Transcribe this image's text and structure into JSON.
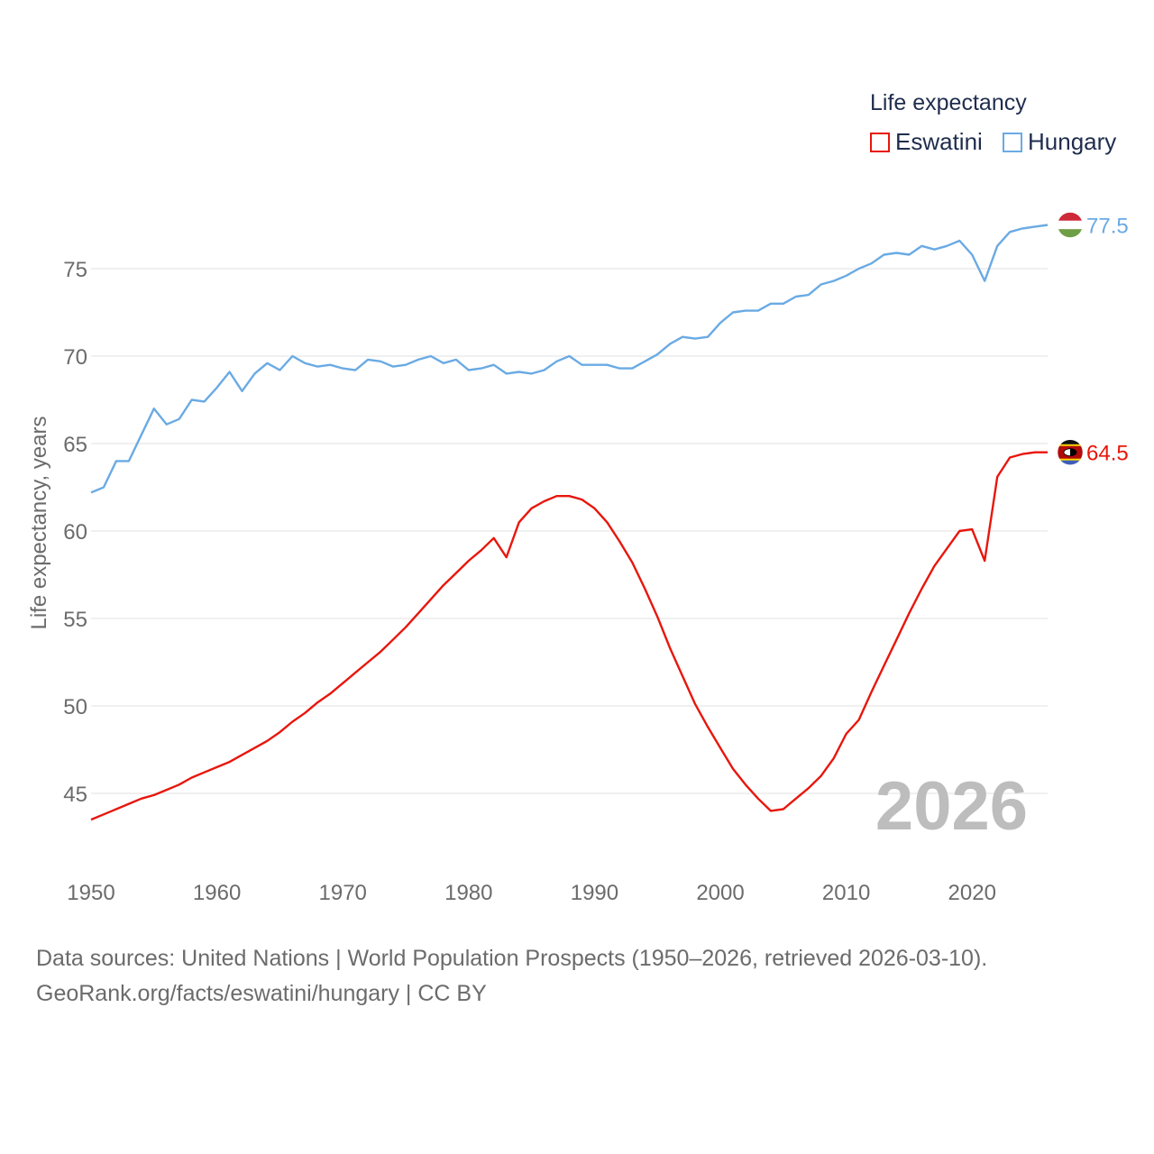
{
  "chart_data": {
    "type": "line",
    "title": "",
    "legend_title": "Life expectancy",
    "xlabel": "",
    "ylabel": "Life expectancy, years",
    "xlim": [
      1950,
      2026
    ],
    "ylim": [
      42,
      80
    ],
    "x_ticks": [
      "1950",
      "1960",
      "1970",
      "1980",
      "1990",
      "2000",
      "2010",
      "2020"
    ],
    "y_ticks": [
      "45",
      "50",
      "55",
      "60",
      "65",
      "70",
      "75"
    ],
    "watermark_year": "2026",
    "legend_position": "top-right",
    "x": [
      1950,
      1951,
      1952,
      1953,
      1954,
      1955,
      1956,
      1957,
      1958,
      1959,
      1960,
      1961,
      1962,
      1963,
      1964,
      1965,
      1966,
      1967,
      1968,
      1969,
      1970,
      1971,
      1972,
      1973,
      1974,
      1975,
      1976,
      1977,
      1978,
      1979,
      1980,
      1981,
      1982,
      1983,
      1984,
      1985,
      1986,
      1987,
      1988,
      1989,
      1990,
      1991,
      1992,
      1993,
      1994,
      1995,
      1996,
      1997,
      1998,
      1999,
      2000,
      2001,
      2002,
      2003,
      2004,
      2005,
      2006,
      2007,
      2008,
      2009,
      2010,
      2011,
      2012,
      2013,
      2014,
      2015,
      2016,
      2017,
      2018,
      2019,
      2020,
      2021,
      2022,
      2023,
      2024,
      2025,
      2026
    ],
    "series": [
      {
        "name": "Eswatini",
        "color": "#e8160c",
        "end_label": "64.5",
        "flag": "eswatini-flag-icon",
        "values": [
          43.5,
          43.8,
          44.1,
          44.4,
          44.7,
          44.9,
          45.2,
          45.5,
          45.9,
          46.2,
          46.5,
          46.8,
          47.2,
          47.6,
          48.0,
          48.5,
          49.1,
          49.6,
          50.2,
          50.7,
          51.3,
          51.9,
          52.5,
          53.1,
          53.8,
          54.5,
          55.3,
          56.1,
          56.9,
          57.6,
          58.3,
          58.9,
          59.6,
          58.5,
          60.5,
          61.3,
          61.7,
          62.0,
          62.0,
          61.8,
          61.3,
          60.5,
          59.4,
          58.2,
          56.7,
          55.1,
          53.3,
          51.7,
          50.1,
          48.8,
          47.6,
          46.4,
          45.5,
          44.7,
          44.0,
          44.1,
          44.7,
          45.3,
          46.0,
          47.0,
          48.4,
          49.2,
          50.8,
          52.3,
          53.8,
          55.3,
          56.7,
          58.0,
          59.0,
          60.0,
          60.1,
          58.3,
          63.1,
          64.2,
          64.4,
          64.5,
          64.5
        ]
      },
      {
        "name": "Hungary",
        "color": "#6aaae4",
        "end_label": "77.5",
        "flag": "hungary-flag-icon",
        "values": [
          62.2,
          62.5,
          64.0,
          64.0,
          65.5,
          67.0,
          66.1,
          66.4,
          67.5,
          67.4,
          68.2,
          69.1,
          68.0,
          69.0,
          69.6,
          69.2,
          70.0,
          69.6,
          69.4,
          69.5,
          69.3,
          69.2,
          69.8,
          69.7,
          69.4,
          69.5,
          69.8,
          70.0,
          69.6,
          69.8,
          69.2,
          69.3,
          69.5,
          69.0,
          69.1,
          69.0,
          69.2,
          69.7,
          70.0,
          69.5,
          69.5,
          69.5,
          69.3,
          69.3,
          69.7,
          70.1,
          70.7,
          71.1,
          71.0,
          71.1,
          71.9,
          72.5,
          72.6,
          72.6,
          73.0,
          73.0,
          73.4,
          73.5,
          74.1,
          74.3,
          74.6,
          75.0,
          75.3,
          75.8,
          75.9,
          75.8,
          76.3,
          76.1,
          76.3,
          76.6,
          75.8,
          74.3,
          76.3,
          77.1,
          77.3,
          77.4,
          77.5
        ]
      }
    ]
  },
  "footer": {
    "sources_line": "Data sources: United Nations | World Population Prospects (1950–2026, retrieved 2026-03-10).",
    "url_line": "GeoRank.org/facts/eswatini/hungary | CC BY"
  },
  "colors": {
    "grid": "#e6e6e6",
    "tick_text": "#6b6b6b",
    "watermark": "#bdbdbd",
    "legend_text": "#1f2d4d"
  }
}
